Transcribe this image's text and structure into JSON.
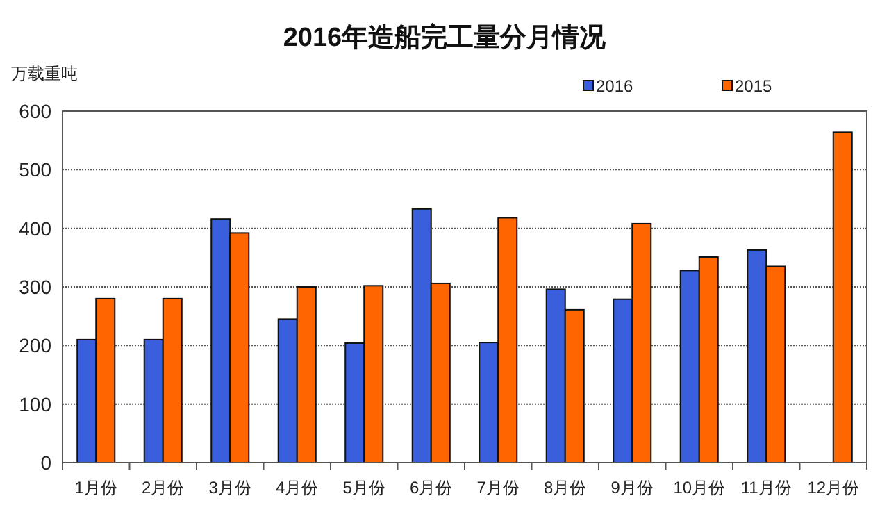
{
  "chart_data": {
    "type": "bar",
    "title": "2016年造船完工量分月情况",
    "ylabel": "万载重吨",
    "categories": [
      "1月份",
      "2月份",
      "3月份",
      "4月份",
      "5月份",
      "6月份",
      "7月份",
      "8月份",
      "9月份",
      "10月份",
      "11月份",
      "12月份"
    ],
    "series": [
      {
        "name": "2016",
        "color": "#3a5fdc",
        "values": [
          210,
          210,
          416,
          245,
          204,
          433,
          205,
          296,
          279,
          328,
          363,
          null
        ]
      },
      {
        "name": "2015",
        "color": "#ff6600",
        "values": [
          280,
          280,
          392,
          300,
          302,
          306,
          418,
          261,
          408,
          351,
          335,
          564
        ]
      }
    ],
    "ylim": [
      0,
      600
    ],
    "yticks": [
      0,
      100,
      200,
      300,
      400,
      500,
      600
    ],
    "grid": "y",
    "legend": "top right"
  }
}
